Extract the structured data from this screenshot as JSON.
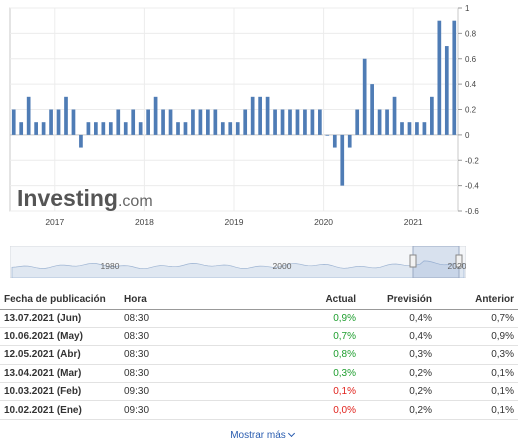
{
  "chart_data": {
    "type": "bar",
    "color": "#4f7cb5",
    "x_labels": [
      "2017",
      "2018",
      "2019",
      "2020",
      "2021"
    ],
    "y_ticks": [
      "1",
      "0.8",
      "0.6",
      "0.4",
      "0.2",
      "0",
      "-0.2",
      "-0.4",
      "-0.6"
    ],
    "ylim": [
      -0.6,
      1.0
    ],
    "grid": true,
    "values": [
      0.2,
      0.1,
      0.3,
      0.1,
      0.1,
      0.2,
      0.2,
      0.3,
      0.2,
      -0.1,
      0.1,
      0.1,
      0.1,
      0.1,
      0.2,
      0.1,
      0.2,
      0.1,
      0.2,
      0.3,
      0.2,
      0.2,
      0.1,
      0.1,
      0.2,
      0.2,
      0.2,
      0.2,
      0.1,
      0.1,
      0.1,
      0.2,
      0.3,
      0.3,
      0.3,
      0.2,
      0.2,
      0.2,
      0.2,
      0.2,
      0.2,
      0.2,
      0.0,
      -0.1,
      -0.4,
      -0.1,
      0.2,
      0.6,
      0.4,
      0.2,
      0.2,
      0.3,
      0.1,
      0.1,
      0.1,
      0.1,
      0.3,
      0.9,
      0.7,
      0.9
    ],
    "navigator_labels": [
      "1980",
      "2000",
      "2020"
    ]
  },
  "watermark": {
    "brand": "Investing",
    "suffix": ".com"
  },
  "table": {
    "headers": {
      "date": "Fecha de publicación",
      "hora": "Hora",
      "actual": "Actual",
      "prevision": "Previsión",
      "anterior": "Anterior"
    },
    "rows": [
      {
        "date": "13.07.2021 (Jun)",
        "hora": "08:30",
        "actual": "0,9%",
        "actual_status": "green",
        "prevision": "0,4%",
        "anterior": "0,7%"
      },
      {
        "date": "10.06.2021 (May)",
        "hora": "08:30",
        "actual": "0,7%",
        "actual_status": "green",
        "prevision": "0,4%",
        "anterior": "0,9%"
      },
      {
        "date": "12.05.2021 (Abr)",
        "hora": "08:30",
        "actual": "0,8%",
        "actual_status": "green",
        "prevision": "0,3%",
        "anterior": "0,3%"
      },
      {
        "date": "13.04.2021 (Mar)",
        "hora": "08:30",
        "actual": "0,3%",
        "actual_status": "green",
        "prevision": "0,2%",
        "anterior": "0,1%"
      },
      {
        "date": "10.03.2021 (Feb)",
        "hora": "09:30",
        "actual": "0,1%",
        "actual_status": "red",
        "prevision": "0,2%",
        "anterior": "0,1%"
      },
      {
        "date": "10.02.2021 (Ene)",
        "hora": "09:30",
        "actual": "0,0%",
        "actual_status": "red",
        "prevision": "0,2%",
        "anterior": "0,1%"
      }
    ]
  },
  "show_more": {
    "label": "Mostrar más"
  }
}
